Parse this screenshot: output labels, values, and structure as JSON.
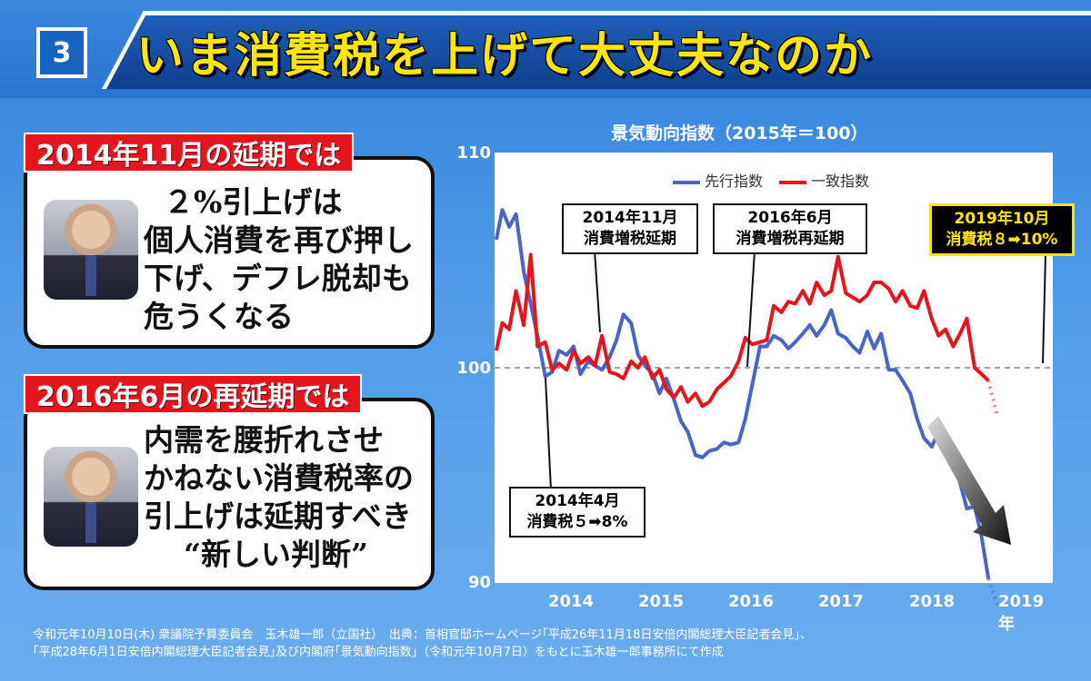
{
  "header": {
    "number": "3",
    "title": "いま消費税を上げて大丈夫なのか"
  },
  "panels": [
    {
      "tag": "2014年11月の延期では",
      "quote": [
        "２%引上げは",
        "個人消費を再び押し",
        "下げ、デフレ脱却も",
        "危うくなる"
      ],
      "photo_icon": "person-photo-icon"
    },
    {
      "tag": "2016年6月の再延期では",
      "quote": [
        "内需を腰折れさせ",
        "かねない消費税率の",
        "引上げは延期すべき",
        "“新しい判断”"
      ],
      "photo_icon": "person-photo-icon"
    }
  ],
  "chart_data": {
    "type": "line",
    "title": "景気動向指数（2015年＝100）",
    "ylim": [
      90,
      110
    ],
    "yticks": [
      "110",
      "100",
      "90"
    ],
    "xticks": [
      "2014",
      "2015",
      "2016",
      "2017",
      "2018",
      "2019年"
    ],
    "xrange": [
      2013.33,
      2019.83
    ],
    "reference_line": 100,
    "series": [
      {
        "name": "先行指数",
        "color": "#4a64c8",
        "x": [
          2013.35,
          2013.42,
          2013.5,
          2013.58,
          2013.67,
          2013.75,
          2013.83,
          2013.92,
          2014.0,
          2014.08,
          2014.17,
          2014.25,
          2014.33,
          2014.42,
          2014.5,
          2014.58,
          2014.67,
          2014.75,
          2014.83,
          2014.92,
          2015.0,
          2015.08,
          2015.17,
          2015.25,
          2015.33,
          2015.42,
          2015.5,
          2015.58,
          2015.67,
          2015.75,
          2015.83,
          2015.92,
          2016.0,
          2016.08,
          2016.17,
          2016.25,
          2016.33,
          2016.42,
          2016.5,
          2016.58,
          2016.67,
          2016.75,
          2016.83,
          2016.92,
          2017.0,
          2017.08,
          2017.17,
          2017.25,
          2017.33,
          2017.42,
          2017.5,
          2017.58,
          2017.67,
          2017.75,
          2017.83,
          2017.92,
          2018.0,
          2018.08,
          2018.17,
          2018.25,
          2018.33,
          2018.42,
          2018.5,
          2018.58,
          2018.67,
          2018.75,
          2018.83,
          2018.92,
          2019.0,
          2019.08
        ],
        "values": [
          106,
          107.4,
          106.6,
          107.2,
          104.5,
          103,
          101.5,
          99.6,
          99.8,
          100.8,
          100.6,
          101,
          99.7,
          100.3,
          100.1,
          99.9,
          100.5,
          101.3,
          102.5,
          102.1,
          100.6,
          100.1,
          99.7,
          98.8,
          99.5,
          98.5,
          97.5,
          97,
          95.9,
          95.8,
          96.1,
          96.2,
          96.5,
          96.4,
          96.5,
          97.6,
          99.2,
          101,
          101,
          101.5,
          101.3,
          100.9,
          101.2,
          101.6,
          102,
          101.5,
          102,
          102.7,
          101.6,
          101.4,
          101,
          100.7,
          101.7,
          100.9,
          101.6,
          99.9,
          99.9,
          99.4,
          98.8,
          97.6,
          96.7,
          96.3,
          97,
          96,
          95.6,
          94.6,
          93.4,
          93.5,
          92.1,
          90.1
        ]
      },
      {
        "name": "一致指数",
        "color": "#e8141b",
        "x": [
          2013.35,
          2013.42,
          2013.5,
          2013.58,
          2013.67,
          2013.75,
          2013.83,
          2013.92,
          2014.0,
          2014.08,
          2014.17,
          2014.25,
          2014.33,
          2014.42,
          2014.5,
          2014.58,
          2014.67,
          2014.75,
          2014.83,
          2014.92,
          2015.0,
          2015.08,
          2015.17,
          2015.25,
          2015.33,
          2015.42,
          2015.5,
          2015.58,
          2015.67,
          2015.75,
          2015.83,
          2015.92,
          2016.0,
          2016.08,
          2016.17,
          2016.25,
          2016.33,
          2016.42,
          2016.5,
          2016.58,
          2016.67,
          2016.75,
          2016.83,
          2016.92,
          2017.0,
          2017.08,
          2017.17,
          2017.25,
          2017.33,
          2017.42,
          2017.5,
          2017.58,
          2017.67,
          2017.75,
          2017.83,
          2017.92,
          2018.0,
          2018.08,
          2018.17,
          2018.25,
          2018.33,
          2018.42,
          2018.5,
          2018.58,
          2018.67,
          2018.75,
          2018.83,
          2018.92,
          2019.0,
          2019.08
        ],
        "values": [
          100.8,
          102.1,
          101.8,
          103.6,
          102,
          105.3,
          101,
          101.2,
          99.9,
          100.2,
          99.9,
          100.8,
          100.2,
          100.5,
          100.1,
          101.5,
          99.8,
          99.7,
          99.5,
          100.3,
          100,
          100.5,
          99.5,
          99.9,
          99,
          98.6,
          99.1,
          98.4,
          98.8,
          98.2,
          98.4,
          99,
          99.3,
          99.6,
          100.3,
          101.4,
          101.1,
          101.2,
          101.3,
          102.9,
          102.6,
          103.1,
          103,
          103.6,
          103,
          104,
          103.4,
          103.6,
          105.2,
          103.5,
          103.3,
          103.1,
          103.4,
          104,
          104,
          103.7,
          103.1,
          103.6,
          102.9,
          102.8,
          103.6,
          102.3,
          101.5,
          101.8,
          101,
          101.6,
          102.3,
          100,
          99.7,
          99.4
        ]
      }
    ]
  },
  "annotations": {
    "a2014_11": [
      "2014年11月",
      "消費増税延期"
    ],
    "a2016_6": [
      "2016年6月",
      "消費増税再延期"
    ],
    "a2019_10": [
      "2019年10月",
      "消費税８➡10%"
    ],
    "a2014_4": [
      "2014年4月",
      "消費税５➡8%"
    ]
  },
  "source": [
    "令和元年10月10日(木) 衆議院予算委員会　玉木雄一郎（立国社）　出典：首相官邸ホームページ｢平成26年11月18日安倍内閣総理大臣記者会見｣、",
    "｢平成28年6月1日安倍内閣総理大臣記者会見｣及び内閣府｢景気動向指数｣（令和元年10月7日）をもとに玉木雄一郎事務所にて作成"
  ]
}
